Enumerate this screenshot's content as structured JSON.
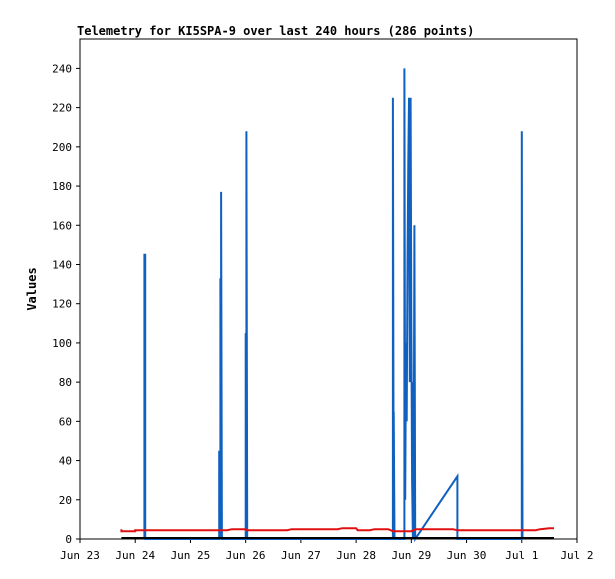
{
  "chart_data": {
    "type": "line",
    "title": "Telemetry for KI5SPA-9 over last 240 hours (286 points)",
    "xlabel": "",
    "ylabel": "Values",
    "x_tick_labels": [
      "Jun 23",
      "Jun 24",
      "Jun 25",
      "Jun 26",
      "Jun 27",
      "Jun 28",
      "Jun 29",
      "Jun 30",
      "Jul 1",
      "Jul 2"
    ],
    "xlim": [
      "Jun 23",
      "Jul 2"
    ],
    "y_ticks": [
      0,
      20,
      40,
      60,
      80,
      100,
      120,
      140,
      160,
      180,
      200,
      220,
      240
    ],
    "ylim": [
      0,
      255
    ],
    "grid": false,
    "legend": "none",
    "colors": {
      "series_blue": "#1060c0",
      "series_red": "#e01010",
      "series_black": "#000000"
    },
    "series": [
      {
        "color_key": "series_blue",
        "points": [
          [
            "Jun 24 04:00",
            0
          ],
          [
            "Jun 24 04:00",
            145
          ],
          [
            "Jun 24 04:20",
            145
          ],
          [
            "Jun 24 04:20",
            0
          ],
          [
            "Jun 25 12:30",
            0
          ],
          [
            "Jun 25 12:30",
            45
          ],
          [
            "Jun 25 13:00",
            0
          ],
          [
            "Jun 25 13:00",
            133
          ],
          [
            "Jun 25 13:20",
            0
          ],
          [
            "Jun 25 13:20",
            177
          ],
          [
            "Jun 25 13:40",
            0
          ],
          [
            "Jun 26 00:00",
            0
          ],
          [
            "Jun 26 00:00",
            105
          ],
          [
            "Jun 26 00:20",
            0
          ],
          [
            "Jun 26 00:20",
            208
          ],
          [
            "Jun 26 00:40",
            0
          ],
          [
            "Jun 28 16:00",
            0
          ],
          [
            "Jun 28 16:00",
            225
          ],
          [
            "Jun 28 16:20",
            0
          ],
          [
            "Jun 28 16:20",
            65
          ],
          [
            "Jun 28 16:40",
            0
          ],
          [
            "Jun 28 21:00",
            0
          ],
          [
            "Jun 28 21:00",
            240
          ],
          [
            "Jun 28 21:20",
            20
          ],
          [
            "Jun 28 21:40",
            100
          ],
          [
            "Jun 28 22:00",
            60
          ],
          [
            "Jun 28 22:20",
            140
          ],
          [
            "Jun 28 22:40",
            192
          ],
          [
            "Jun 28 23:00",
            225
          ],
          [
            "Jun 28 23:20",
            80
          ],
          [
            "Jun 28 23:40",
            225
          ],
          [
            "Jun 29 00:00",
            112
          ],
          [
            "Jun 29 00:20",
            30
          ],
          [
            "Jun 29 00:40",
            0
          ],
          [
            "Jun 29 00:40",
            80
          ],
          [
            "Jun 29 01:00",
            0
          ],
          [
            "Jun 29 01:20",
            160
          ],
          [
            "Jun 29 01:40",
            0
          ],
          [
            "Jun 29 20:00",
            32
          ],
          [
            "Jun 29 20:00",
            0
          ],
          [
            "Jul 1 00:00",
            0
          ],
          [
            "Jul 1 00:00",
            208
          ],
          [
            "Jul 1 00:20",
            0
          ]
        ]
      },
      {
        "color_key": "series_red",
        "points": [
          [
            "Jun 23 18:00",
            5
          ],
          [
            "Jun 23 18:00",
            4
          ],
          [
            "Jun 24 00:00",
            4
          ],
          [
            "Jun 24 00:00",
            4.5
          ],
          [
            "Jun 25 16:00",
            4.5
          ],
          [
            "Jun 25 18:00",
            5
          ],
          [
            "Jun 26 00:00",
            5
          ],
          [
            "Jun 26 00:20",
            4.5
          ],
          [
            "Jun 26 18:00",
            4.5
          ],
          [
            "Jun 26 20:00",
            5
          ],
          [
            "Jun 27 16:00",
            5
          ],
          [
            "Jun 27 18:00",
            5.5
          ],
          [
            "Jun 28 00:00",
            5.5
          ],
          [
            "Jun 28 00:40",
            4.5
          ],
          [
            "Jun 28 06:00",
            4.5
          ],
          [
            "Jun 28 08:00",
            5
          ],
          [
            "Jun 28 14:00",
            5
          ],
          [
            "Jun 28 16:00",
            4
          ],
          [
            "Jun 29 00:00",
            4
          ],
          [
            "Jun 29 02:00",
            5
          ],
          [
            "Jun 29 18:00",
            5
          ],
          [
            "Jun 29 20:00",
            4.5
          ],
          [
            "Jul 1 06:00",
            4.5
          ],
          [
            "Jul 1 08:00",
            5
          ],
          [
            "Jul 1 12:00",
            5.5
          ],
          [
            "Jul 1 14:00",
            5.5
          ]
        ]
      },
      {
        "color_key": "series_black",
        "points": [
          [
            "Jun 23 18:00",
            0.5
          ],
          [
            "Jul 1 14:00",
            0.5
          ]
        ]
      }
    ]
  }
}
